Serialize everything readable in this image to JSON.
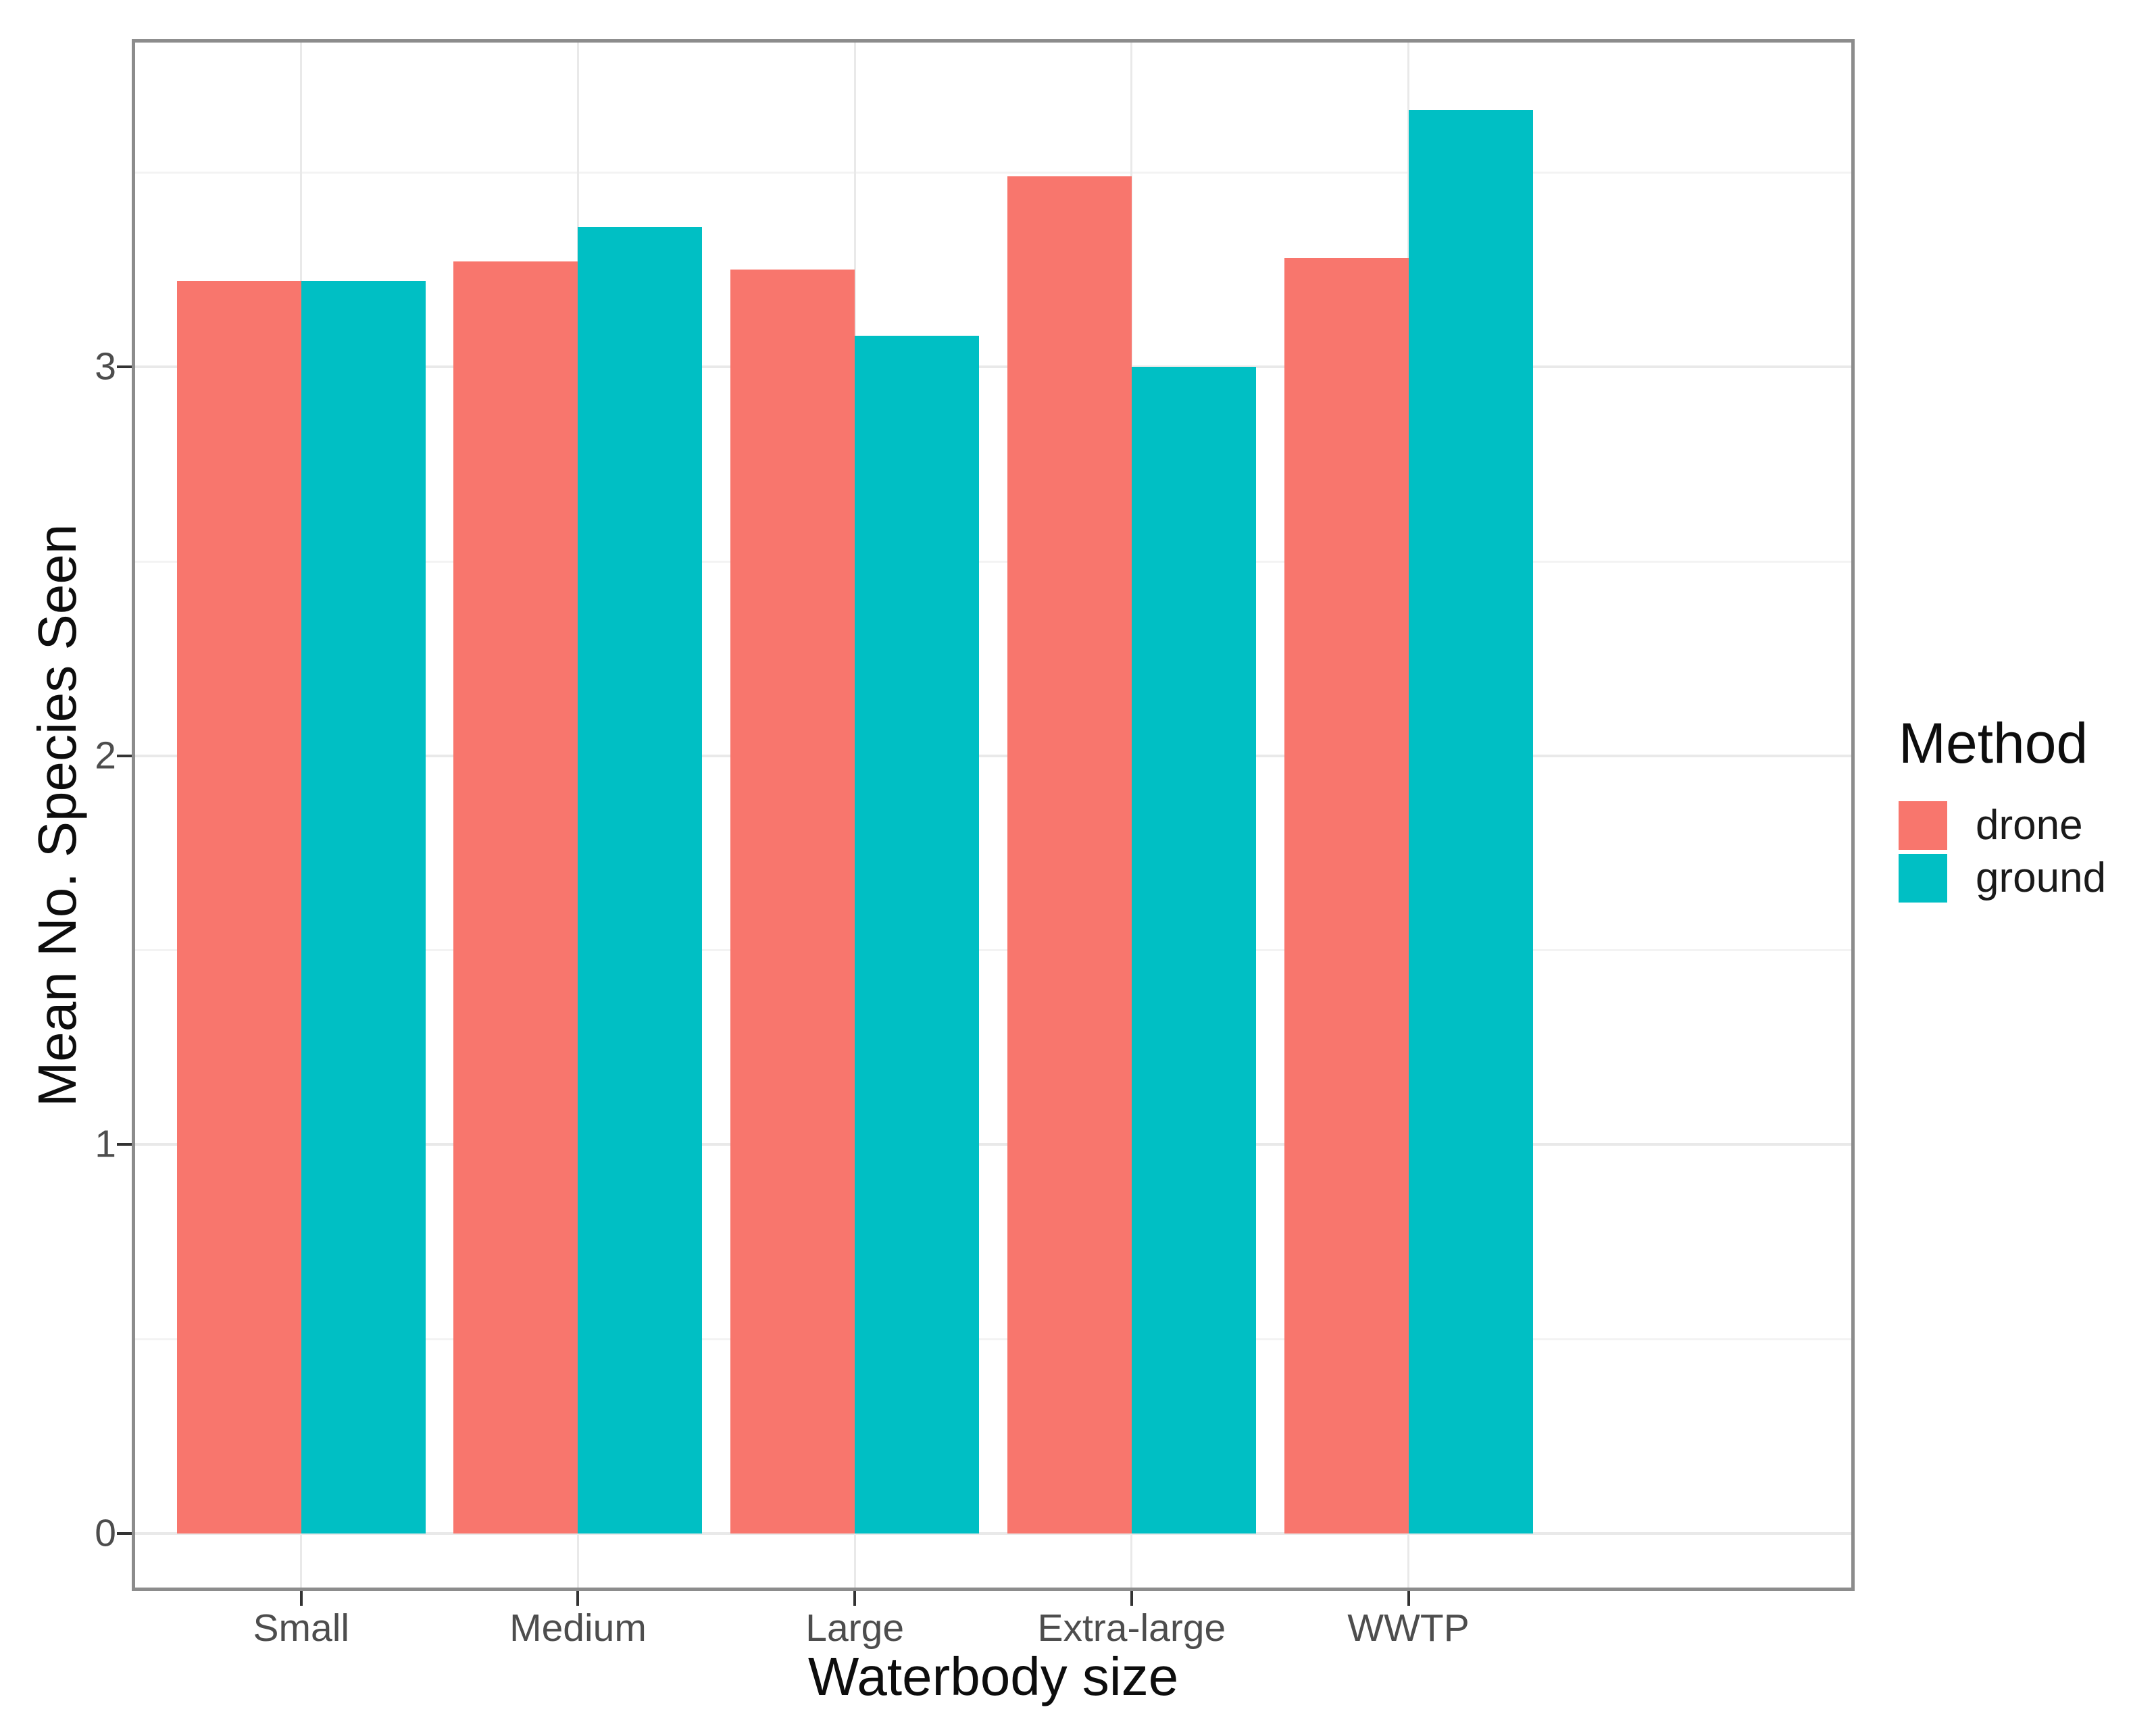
{
  "chart_data": {
    "type": "bar",
    "title": "",
    "xlabel": "Waterbody size",
    "ylabel": "Mean No. Species Seen",
    "categories": [
      "Small",
      "Medium",
      "Large",
      "Extra-large",
      "WWTP"
    ],
    "series": [
      {
        "name": "drone",
        "color": "#F8766D",
        "values": [
          3.22,
          3.27,
          3.25,
          3.49,
          3.28
        ]
      },
      {
        "name": "ground",
        "color": "#00BFC4",
        "values": [
          3.22,
          3.36,
          3.08,
          3.0,
          3.66
        ]
      }
    ],
    "y_ticks": [
      "0",
      "1",
      "2",
      "3"
    ],
    "y_tick_values": [
      0,
      1,
      2,
      3
    ],
    "ylim": [
      -0.15,
      3.83
    ],
    "grid": {
      "show": true,
      "major_color": "#e9e9e9",
      "minor_color": "#f3f3f3",
      "minor_step": 0.5
    },
    "legend": {
      "title": "Method",
      "position": "right",
      "entries": [
        "drone",
        "ground"
      ]
    },
    "panel": {
      "background": "#ffffff",
      "border_color": "#8c8c8c"
    }
  }
}
